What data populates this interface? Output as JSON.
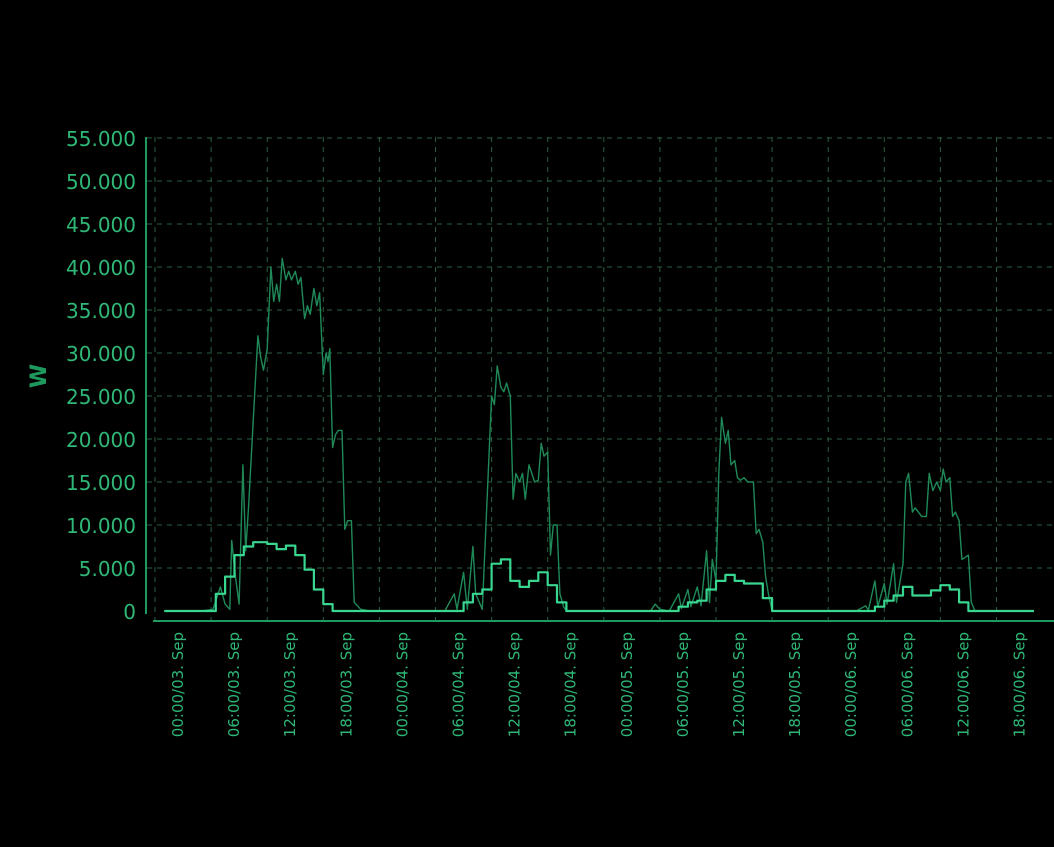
{
  "colors": {
    "background": "#000000",
    "axis": "#1f9a5f",
    "grid": "#2a5e3f",
    "tick_text": "#2fb877",
    "series_main": "#1f8a58",
    "series_bold": "#39d690"
  },
  "chart_data": {
    "type": "line",
    "title": "",
    "xlabel": "",
    "ylabel": "W",
    "ylim": [
      0,
      55000
    ],
    "xlim_hours": [
      0,
      94
    ],
    "grid": true,
    "legend": "none",
    "y_ticks": [
      {
        "value": 0,
        "label": "0"
      },
      {
        "value": 5000,
        "label": "5.000"
      },
      {
        "value": 10000,
        "label": "10.000"
      },
      {
        "value": 15000,
        "label": "15.000"
      },
      {
        "value": 20000,
        "label": "20.000"
      },
      {
        "value": 25000,
        "label": "25.000"
      },
      {
        "value": 30000,
        "label": "30.000"
      },
      {
        "value": 35000,
        "label": "35.000"
      },
      {
        "value": 40000,
        "label": "40.000"
      },
      {
        "value": 45000,
        "label": "45.000"
      },
      {
        "value": 50000,
        "label": "50.000"
      },
      {
        "value": 55000,
        "label": "55.000"
      }
    ],
    "x_ticks": [
      {
        "hour": 0,
        "label": "00:00/03. Sep"
      },
      {
        "hour": 6,
        "label": "06:00/03. Sep"
      },
      {
        "hour": 12,
        "label": "12:00/03. Sep"
      },
      {
        "hour": 18,
        "label": "18:00/03. Sep"
      },
      {
        "hour": 24,
        "label": "00:00/04. Sep"
      },
      {
        "hour": 30,
        "label": "06:00/04. Sep"
      },
      {
        "hour": 36,
        "label": "12:00/04. Sep"
      },
      {
        "hour": 42,
        "label": "18:00/04. Sep"
      },
      {
        "hour": 48,
        "label": "00:00/05. Sep"
      },
      {
        "hour": 54,
        "label": "06:00/05. Sep"
      },
      {
        "hour": 60,
        "label": "12:00/05. Sep"
      },
      {
        "hour": 66,
        "label": "18:00/05. Sep"
      },
      {
        "hour": 72,
        "label": "00:00/06. Sep"
      },
      {
        "hour": 78,
        "label": "06:00/06. Sep"
      },
      {
        "hour": 84,
        "label": "12:00/06. Sep"
      },
      {
        "hour": 90,
        "label": "18:00/06. Sep"
      }
    ],
    "series": [
      {
        "style": "thin",
        "points": [
          [
            1,
            0
          ],
          [
            5,
            0
          ],
          [
            6.2,
            200
          ],
          [
            7,
            2800
          ],
          [
            7.5,
            800
          ],
          [
            8,
            200
          ],
          [
            8.2,
            8200
          ],
          [
            8.6,
            4000
          ],
          [
            9,
            800
          ],
          [
            9.4,
            17000
          ],
          [
            9.7,
            7000
          ],
          [
            10,
            12000
          ],
          [
            10.6,
            24000
          ],
          [
            11,
            32000
          ],
          [
            11.3,
            29500
          ],
          [
            11.6,
            28000
          ],
          [
            12,
            30500
          ],
          [
            12.4,
            40000
          ],
          [
            12.7,
            36000
          ],
          [
            13,
            38000
          ],
          [
            13.3,
            36000
          ],
          [
            13.6,
            41000
          ],
          [
            14,
            38500
          ],
          [
            14.3,
            39500
          ],
          [
            14.6,
            38500
          ],
          [
            15,
            39500
          ],
          [
            15.3,
            38000
          ],
          [
            15.6,
            38800
          ],
          [
            16,
            34000
          ],
          [
            16.3,
            35500
          ],
          [
            16.6,
            34500
          ],
          [
            17,
            37500
          ],
          [
            17.3,
            35500
          ],
          [
            17.6,
            37000
          ],
          [
            18,
            27500
          ],
          [
            18.3,
            30000
          ],
          [
            18.5,
            29000
          ],
          [
            18.7,
            30500
          ],
          [
            19,
            19000
          ],
          [
            19.3,
            20500
          ],
          [
            19.6,
            21000
          ],
          [
            20,
            21000
          ],
          [
            20.3,
            9500
          ],
          [
            20.6,
            10500
          ],
          [
            21,
            10500
          ],
          [
            21.3,
            1000
          ],
          [
            22,
            200
          ],
          [
            23,
            0
          ],
          [
            31,
            0
          ],
          [
            32,
            2000
          ],
          [
            32.3,
            200
          ],
          [
            33,
            4500
          ],
          [
            33.4,
            200
          ],
          [
            34,
            7500
          ],
          [
            34.3,
            2000
          ],
          [
            35,
            200
          ],
          [
            36,
            25000
          ],
          [
            36.3,
            24000
          ],
          [
            36.6,
            28500
          ],
          [
            37,
            26000
          ],
          [
            37.3,
            25500
          ],
          [
            37.6,
            26500
          ],
          [
            38,
            25000
          ],
          [
            38.3,
            13000
          ],
          [
            38.6,
            16000
          ],
          [
            39,
            15000
          ],
          [
            39.3,
            16000
          ],
          [
            39.6,
            13000
          ],
          [
            40,
            17000
          ],
          [
            40.3,
            16000
          ],
          [
            40.6,
            15000
          ],
          [
            41,
            15200
          ],
          [
            41.3,
            19500
          ],
          [
            41.6,
            18000
          ],
          [
            42,
            18500
          ],
          [
            42.3,
            6500
          ],
          [
            42.6,
            10000
          ],
          [
            43,
            10000
          ],
          [
            43.3,
            2000
          ],
          [
            43.7,
            500
          ],
          [
            44,
            0
          ],
          [
            53,
            0
          ],
          [
            53.5,
            800
          ],
          [
            54,
            200
          ],
          [
            55,
            0
          ],
          [
            56,
            2000
          ],
          [
            56.3,
            300
          ],
          [
            57,
            2500
          ],
          [
            57.3,
            500
          ],
          [
            58,
            2800
          ],
          [
            58.4,
            600
          ],
          [
            59,
            7000
          ],
          [
            59.3,
            1000
          ],
          [
            59.6,
            6000
          ],
          [
            60,
            3500
          ],
          [
            60.3,
            16000
          ],
          [
            60.6,
            22500
          ],
          [
            61,
            19500
          ],
          [
            61.3,
            21000
          ],
          [
            61.6,
            17000
          ],
          [
            62,
            17500
          ],
          [
            62.3,
            15500
          ],
          [
            62.6,
            15200
          ],
          [
            63,
            15500
          ],
          [
            63.4,
            15000
          ],
          [
            64,
            15000
          ],
          [
            64.3,
            9000
          ],
          [
            64.6,
            9500
          ],
          [
            65,
            8000
          ],
          [
            65.3,
            4000
          ],
          [
            65.6,
            2000
          ],
          [
            66,
            0
          ],
          [
            75,
            0
          ],
          [
            76,
            600
          ],
          [
            76.3,
            100
          ],
          [
            77,
            3500
          ],
          [
            77.3,
            500
          ],
          [
            78,
            3200
          ],
          [
            78.3,
            800
          ],
          [
            79,
            5500
          ],
          [
            79.3,
            1000
          ],
          [
            80,
            5500
          ],
          [
            80.3,
            15000
          ],
          [
            80.6,
            16000
          ],
          [
            81,
            11500
          ],
          [
            81.3,
            12000
          ],
          [
            82,
            11000
          ],
          [
            82.5,
            11000
          ],
          [
            82.8,
            16000
          ],
          [
            83.2,
            14000
          ],
          [
            83.6,
            15000
          ],
          [
            84,
            14000
          ],
          [
            84.3,
            16500
          ],
          [
            84.6,
            15000
          ],
          [
            85,
            15500
          ],
          [
            85.3,
            11000
          ],
          [
            85.6,
            11500
          ],
          [
            86,
            10500
          ],
          [
            86.3,
            6000
          ],
          [
            86.6,
            6200
          ],
          [
            87,
            6500
          ],
          [
            87.3,
            1000
          ],
          [
            87.7,
            0
          ],
          [
            94,
            0
          ]
        ]
      },
      {
        "style": "bold",
        "points": [
          [
            1,
            0
          ],
          [
            6.5,
            0
          ],
          [
            6.5,
            2000
          ],
          [
            7.5,
            2000
          ],
          [
            7.5,
            4000
          ],
          [
            8.5,
            4000
          ],
          [
            8.5,
            6500
          ],
          [
            9.5,
            6500
          ],
          [
            9.5,
            7500
          ],
          [
            10.5,
            7500
          ],
          [
            10.5,
            8000
          ],
          [
            12,
            8000
          ],
          [
            12,
            7800
          ],
          [
            13,
            7800
          ],
          [
            13,
            7200
          ],
          [
            14,
            7200
          ],
          [
            14,
            7600
          ],
          [
            15,
            7600
          ],
          [
            15,
            6500
          ],
          [
            16,
            6500
          ],
          [
            16,
            4800
          ],
          [
            17,
            4800
          ],
          [
            17,
            2500
          ],
          [
            18,
            2500
          ],
          [
            18,
            800
          ],
          [
            19,
            800
          ],
          [
            19,
            0
          ],
          [
            33,
            0
          ],
          [
            33,
            1000
          ],
          [
            34,
            1000
          ],
          [
            34,
            2000
          ],
          [
            35,
            2000
          ],
          [
            35,
            2500
          ],
          [
            36,
            2500
          ],
          [
            36,
            5500
          ],
          [
            37,
            5500
          ],
          [
            37,
            6000
          ],
          [
            38,
            6000
          ],
          [
            38,
            3500
          ],
          [
            39,
            3500
          ],
          [
            39,
            2800
          ],
          [
            40,
            2800
          ],
          [
            40,
            3500
          ],
          [
            41,
            3500
          ],
          [
            41,
            4500
          ],
          [
            42,
            4500
          ],
          [
            42,
            3000
          ],
          [
            43,
            3000
          ],
          [
            43,
            1000
          ],
          [
            44,
            1000
          ],
          [
            44,
            0
          ],
          [
            56,
            0
          ],
          [
            56,
            500
          ],
          [
            57,
            500
          ],
          [
            57,
            1000
          ],
          [
            58,
            1000
          ],
          [
            58,
            1200
          ],
          [
            59,
            1200
          ],
          [
            59,
            2500
          ],
          [
            60,
            2500
          ],
          [
            60,
            3500
          ],
          [
            61,
            3500
          ],
          [
            61,
            4200
          ],
          [
            62,
            4200
          ],
          [
            62,
            3500
          ],
          [
            63,
            3500
          ],
          [
            63,
            3200
          ],
          [
            65,
            3200
          ],
          [
            65,
            1500
          ],
          [
            66,
            1500
          ],
          [
            66,
            0
          ],
          [
            77,
            0
          ],
          [
            77,
            500
          ],
          [
            78,
            500
          ],
          [
            78,
            1200
          ],
          [
            79,
            1200
          ],
          [
            79,
            1800
          ],
          [
            80,
            1800
          ],
          [
            80,
            2800
          ],
          [
            81,
            2800
          ],
          [
            81,
            1800
          ],
          [
            82,
            1800
          ],
          [
            82,
            1800
          ],
          [
            83,
            1800
          ],
          [
            83,
            2400
          ],
          [
            84,
            2400
          ],
          [
            84,
            3000
          ],
          [
            85,
            3000
          ],
          [
            85,
            2500
          ],
          [
            86,
            2500
          ],
          [
            86,
            1000
          ],
          [
            87,
            1000
          ],
          [
            87,
            0
          ],
          [
            94,
            0
          ]
        ]
      }
    ]
  }
}
